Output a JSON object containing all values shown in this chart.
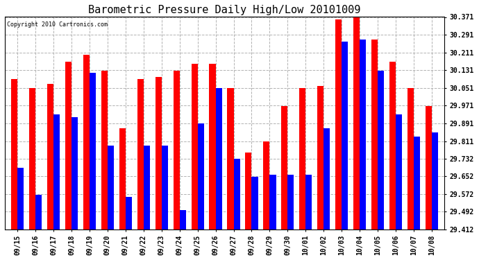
{
  "title": "Barometric Pressure Daily High/Low 20101009",
  "copyright": "Copyright 2010 Cartronics.com",
  "dates": [
    "09/15",
    "09/16",
    "09/17",
    "09/18",
    "09/19",
    "09/20",
    "09/21",
    "09/22",
    "09/23",
    "09/24",
    "09/25",
    "09/26",
    "09/27",
    "09/28",
    "09/29",
    "09/30",
    "10/01",
    "10/02",
    "10/03",
    "10/04",
    "10/05",
    "10/06",
    "10/07",
    "10/08"
  ],
  "highs": [
    30.09,
    30.05,
    30.07,
    30.17,
    30.2,
    30.13,
    29.87,
    30.09,
    30.1,
    30.13,
    30.16,
    30.16,
    30.05,
    29.76,
    29.81,
    29.97,
    30.05,
    30.06,
    30.36,
    30.37,
    30.27,
    30.17,
    30.05,
    29.97
  ],
  "lows": [
    29.69,
    29.57,
    29.93,
    29.92,
    30.12,
    29.79,
    29.56,
    29.79,
    29.79,
    29.5,
    29.89,
    30.05,
    29.73,
    29.65,
    29.66,
    29.66,
    29.66,
    29.87,
    30.26,
    30.27,
    30.13,
    29.93,
    29.83,
    29.85
  ],
  "high_color": "#FF0000",
  "low_color": "#0000FF",
  "background_color": "#FFFFFF",
  "grid_color": "#AAAAAA",
  "ymin": 29.412,
  "ymax": 30.371,
  "yticks": [
    29.412,
    29.492,
    29.572,
    29.652,
    29.732,
    29.811,
    29.891,
    29.971,
    30.051,
    30.131,
    30.211,
    30.291,
    30.371
  ],
  "title_fontsize": 11,
  "tick_fontsize": 7,
  "bar_width": 0.35,
  "figwidth": 6.9,
  "figheight": 3.75
}
